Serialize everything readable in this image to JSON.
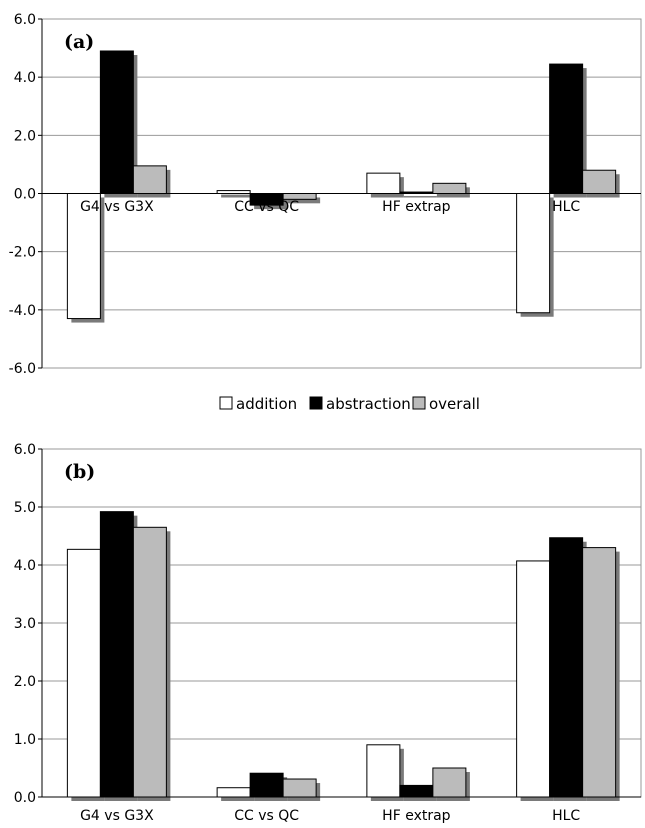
{
  "chart_data": [
    {
      "type": "bar",
      "panel_label": "(a)",
      "categories": [
        "G4 vs G3X",
        "CC vs QC",
        "HF extrap",
        "HLC"
      ],
      "series": [
        {
          "name": "addition",
          "values": [
            -4.3,
            0.1,
            0.7,
            -4.1
          ]
        },
        {
          "name": "abstraction",
          "values": [
            4.9,
            -0.4,
            0.05,
            4.45
          ]
        },
        {
          "name": "overall",
          "values": [
            0.95,
            -0.2,
            0.35,
            0.8
          ]
        }
      ],
      "ylim": [
        -6.0,
        6.0
      ],
      "yticks": [
        "6.0",
        "4.0",
        "2.0",
        "0.0",
        "-2.0",
        "-4.0",
        "-6.0"
      ],
      "grid": true,
      "legend_position": "bottom"
    },
    {
      "type": "bar",
      "panel_label": "(b)",
      "categories": [
        "G4 vs G3X",
        "CC vs QC",
        "HF extrap",
        "HLC"
      ],
      "series": [
        {
          "name": "addition",
          "values": [
            4.27,
            0.16,
            0.9,
            4.07
          ]
        },
        {
          "name": "abstraction",
          "values": [
            4.92,
            0.41,
            0.2,
            4.47
          ]
        },
        {
          "name": "overall",
          "values": [
            4.65,
            0.31,
            0.5,
            4.3
          ]
        }
      ],
      "ylim": [
        0.0,
        6.0
      ],
      "yticks": [
        "6.0",
        "5.0",
        "4.0",
        "3.0",
        "2.0",
        "1.0",
        "0.0"
      ],
      "grid": true
    }
  ],
  "legend": [
    {
      "label": "addition",
      "color": "#ffffff"
    },
    {
      "label": "abstraction",
      "color": "#000000"
    },
    {
      "label": "overall",
      "color": "#bbbbbb"
    }
  ],
  "colors": {
    "addition": "#ffffff",
    "abstraction": "#000000",
    "overall": "#bbbbbb",
    "shadow": "#7a7a7a",
    "grid": "#999999"
  }
}
